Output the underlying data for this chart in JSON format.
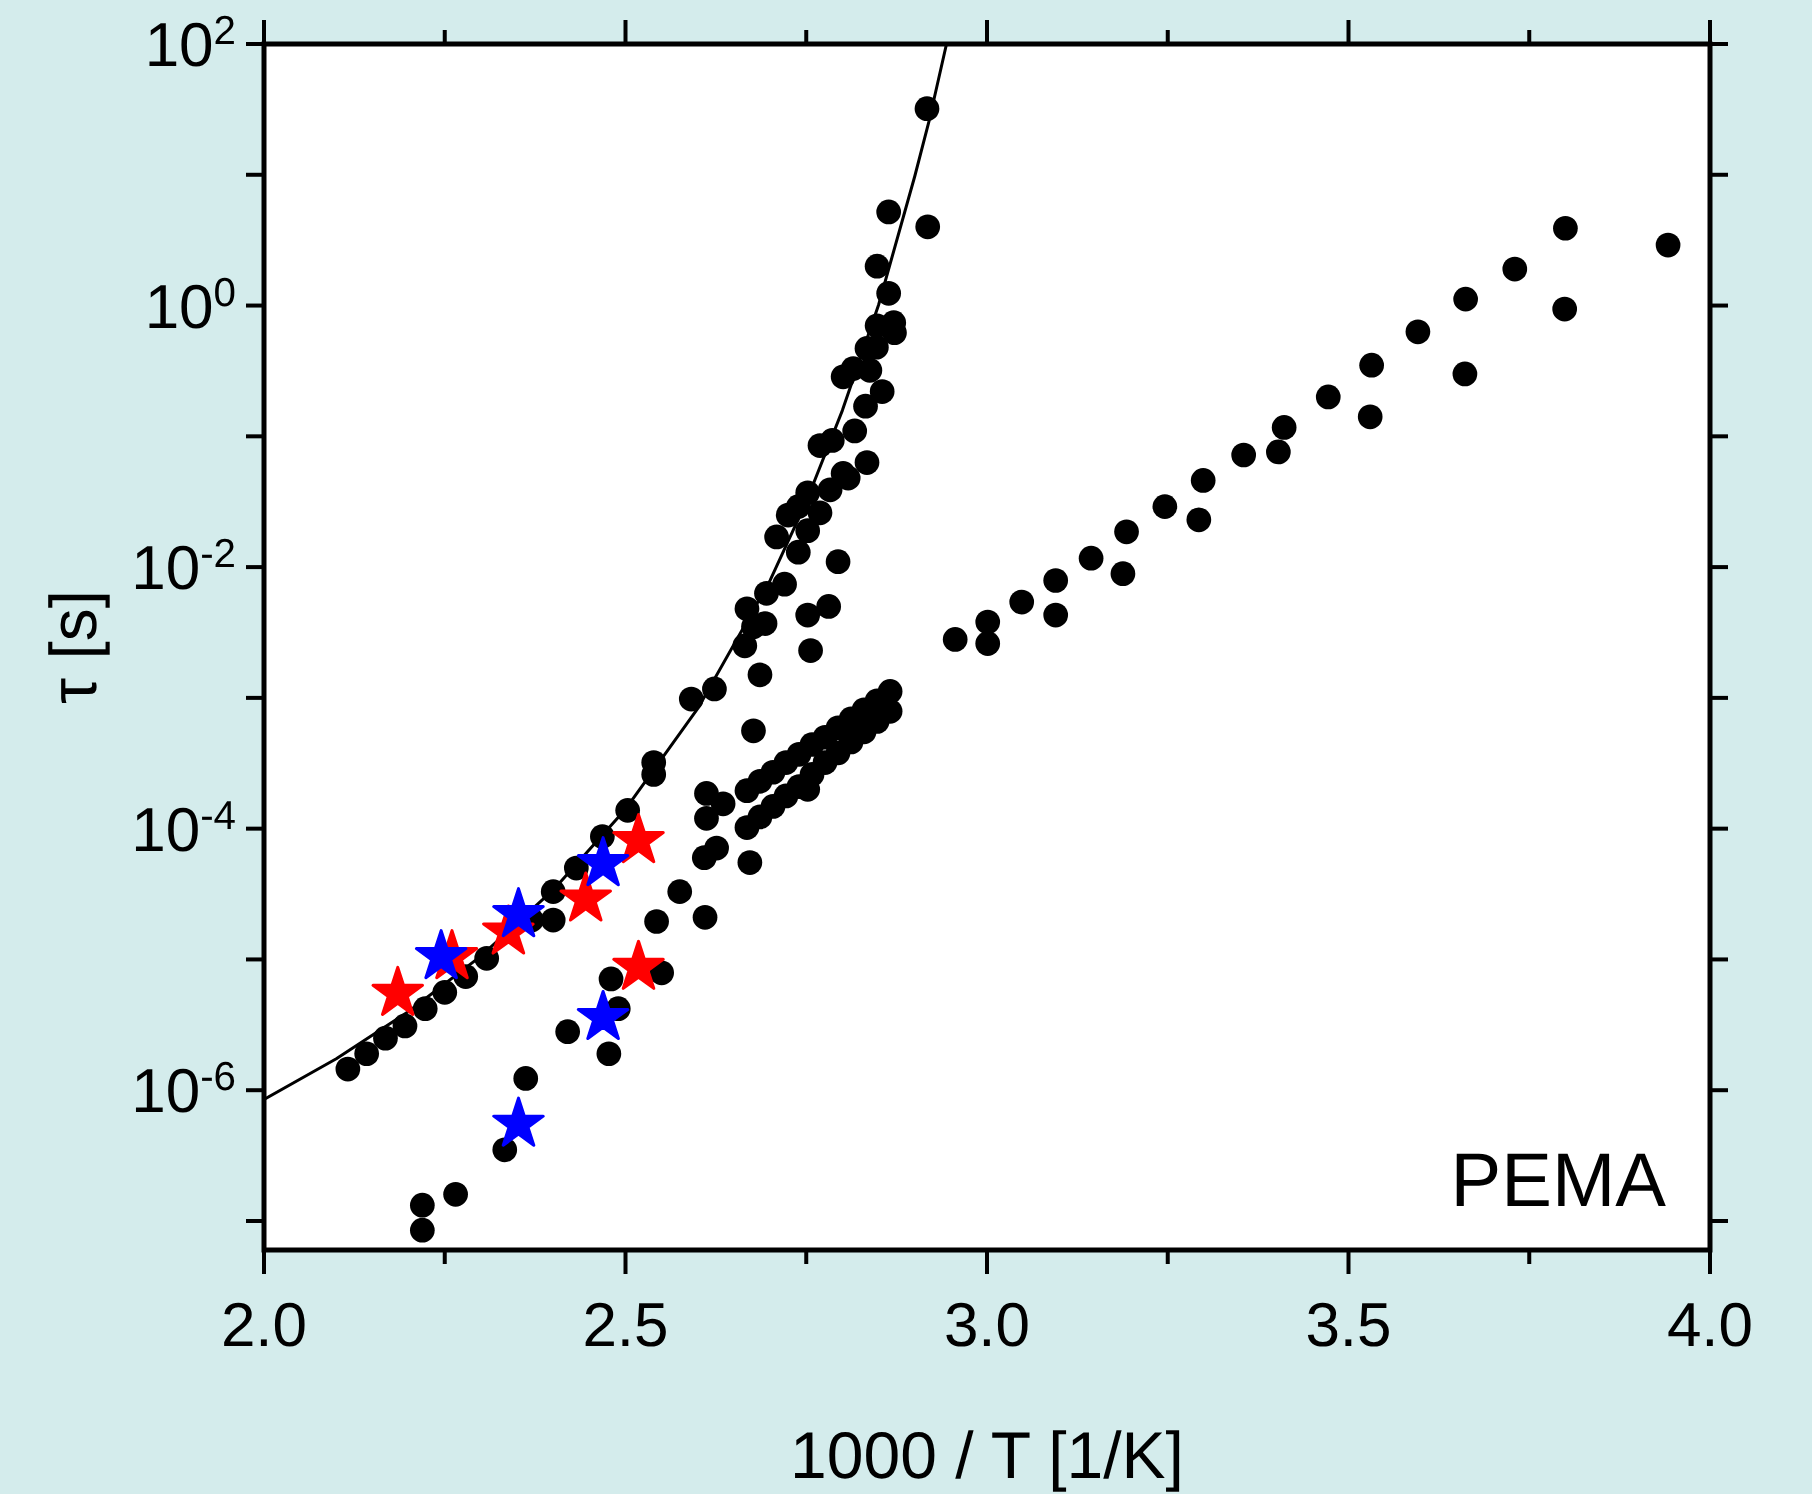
{
  "chart_data": {
    "type": "scatter",
    "xlabel": "1000 / T [1/K]",
    "ylabel": "τ [s]",
    "log": "y",
    "marker": "circle",
    "grid": false,
    "xlim": [
      2.0,
      4.0
    ],
    "xticks": [
      {
        "value": 2,
        "label": "2.0"
      },
      {
        "value": 2.25,
        "label": null
      },
      {
        "value": 2.5,
        "label": "2.5"
      },
      {
        "value": 2.75,
        "label": null
      },
      {
        "value": 3,
        "label": "3.0"
      },
      {
        "value": 3.25,
        "label": null
      },
      {
        "value": 3.5,
        "label": "3.5"
      },
      {
        "value": 3.75,
        "label": null
      },
      {
        "value": 4,
        "label": "4.0"
      }
    ],
    "ylim": [
      6e-08,
      100
    ],
    "yticks": [
      {
        "value": 100,
        "label": "10$^{2}$"
      },
      {
        "value": 10,
        "label": null
      },
      {
        "value": 1,
        "label": "10$^{0}$"
      },
      {
        "value": 0.1,
        "label": null
      },
      {
        "value": 0.01,
        "label": "10$^{-2}$"
      },
      {
        "value": 0.001,
        "label": null
      },
      {
        "value": 0.0001,
        "label": "10$^{-4}$"
      },
      {
        "value": 1e-05,
        "label": null
      },
      {
        "value": 1e-06,
        "label": "10$^{-6}$"
      },
      {
        "value": 1e-07,
        "label": null
      }
    ],
    "annotations": [
      "PEMA"
    ],
    "series": [
      {
        "type": "line",
        "color": "#000000",
        "marker": "none",
        "line_style": "solid",
        "x": [
          2.0,
          2.1,
          2.2,
          2.3,
          2.4,
          2.5,
          2.6,
          2.7,
          2.75,
          2.8,
          2.85,
          2.9,
          2.92,
          2.944
        ],
        "values": [
          8.5e-07,
          1.74e-06,
          4e-06,
          1.06e-05,
          3.4e-05,
          0.000141,
          0.00083,
          0.0079,
          0.0316,
          0.158,
          1.01,
          9.7,
          26,
          100
        ]
      },
      {
        "color": "#000000",
        "x": [
          2.917,
          2.864,
          2.918,
          2.848,
          2.864,
          2.848,
          2.871,
          2.872,
          2.834,
          2.847,
          2.801,
          2.815,
          2.838,
          2.855,
          2.832,
          2.817,
          2.769,
          2.786,
          2.834,
          2.801,
          2.808,
          2.783,
          2.752,
          2.769,
          2.725,
          2.739,
          2.709,
          2.752,
          2.739,
          2.794,
          2.72,
          2.695,
          2.781,
          2.752,
          2.693,
          2.756,
          2.668,
          2.677,
          2.665,
          2.686,
          2.677,
          2.623,
          2.591,
          2.539,
          2.539,
          2.503,
          2.468,
          2.432,
          2.4,
          2.4,
          2.37,
          2.308,
          2.279,
          2.25,
          2.223,
          2.195,
          2.168,
          2.142,
          2.116,
          2.219,
          2.219,
          2.265,
          2.333,
          2.362,
          2.42,
          2.477,
          2.49,
          2.48,
          2.55,
          2.543,
          2.575,
          2.61,
          2.609,
          2.626,
          2.672,
          2.612,
          2.612,
          2.635,
          2.668,
          2.686,
          2.704,
          2.722,
          2.74,
          2.758,
          2.776,
          2.794,
          2.812,
          2.83,
          2.848,
          2.866,
          2.668,
          2.686,
          2.704,
          2.722,
          2.74,
          2.758,
          2.776,
          2.794,
          2.812,
          2.83,
          2.848,
          2.866,
          2.752,
          2.956,
          3.001,
          3.001,
          3.048,
          3.095,
          3.095,
          3.144,
          3.193,
          3.188,
          3.246,
          3.299,
          3.293,
          3.355,
          3.403,
          3.411,
          3.472,
          3.53,
          3.532,
          3.596,
          3.662,
          3.661,
          3.73,
          3.8,
          3.799,
          3.942
        ],
        "values": [
          32,
          5.2,
          4.0,
          2.0,
          1.24,
          0.7,
          0.74,
          0.62,
          0.47,
          0.48,
          0.285,
          0.33,
          0.32,
          0.22,
          0.17,
          0.11,
          0.085,
          0.093,
          0.063,
          0.052,
          0.048,
          0.039,
          0.037,
          0.026,
          0.025,
          0.029,
          0.017,
          0.019,
          0.013,
          0.011,
          0.0074,
          0.0063,
          0.005,
          0.0043,
          0.0037,
          0.0023,
          0.0048,
          0.0035,
          0.0025,
          0.0015,
          0.00056,
          0.00117,
          0.00098,
          0.00032,
          0.00026,
          0.000138,
          8.7e-05,
          5e-05,
          3.3e-05,
          2e-05,
          2e-05,
          1.02e-05,
          7.4e-06,
          5.6e-06,
          4.2e-06,
          3.1e-06,
          2.5e-06,
          1.9e-06,
          1.45e-06,
          8.5e-08,
          1.32e-07,
          1.6e-07,
          3.5e-07,
          1.23e-06,
          2.8e-06,
          1.9e-06,
          4.2e-06,
          7.1e-06,
          7.9e-06,
          1.95e-05,
          3.3e-05,
          2.1e-05,
          6e-05,
          7.1e-05,
          5.5e-05,
          0.00012,
          0.000186,
          0.000155,
          0.000195,
          0.00023,
          0.00027,
          0.00032,
          0.00037,
          0.00044,
          0.0005,
          0.00059,
          0.00069,
          0.00081,
          0.00095,
          0.00112,
          0.000102,
          0.000123,
          0.000148,
          0.000178,
          0.00021,
          0.00026,
          0.00032,
          0.00038,
          0.00046,
          0.00055,
          0.00066,
          0.00079,
          0.0002,
          0.0028,
          0.0038,
          0.0026,
          0.0054,
          0.0079,
          0.0043,
          0.0117,
          0.0186,
          0.0089,
          0.029,
          0.046,
          0.023,
          0.072,
          0.076,
          0.117,
          0.2,
          0.141,
          0.35,
          0.63,
          1.12,
          0.3,
          1.9,
          3.9,
          0.94,
          2.9
        ]
      },
      {
        "color": "#ff0000",
        "marker": "star",
        "x": [
          2.185,
          2.26,
          2.338,
          2.445,
          2.518,
          2.518
        ],
        "values": [
          5.5e-06,
          1.05e-05,
          1.62e-05,
          2.9e-05,
          8.1e-05,
          8.7e-06
        ]
      },
      {
        "color": "#0000ff",
        "marker": "star",
        "x": [
          2.245,
          2.352,
          2.469,
          2.469,
          2.352
        ],
        "values": [
          1.05e-05,
          2.2e-05,
          5.4e-05,
          3.6e-06,
          5.5e-07
        ]
      }
    ]
  }
}
